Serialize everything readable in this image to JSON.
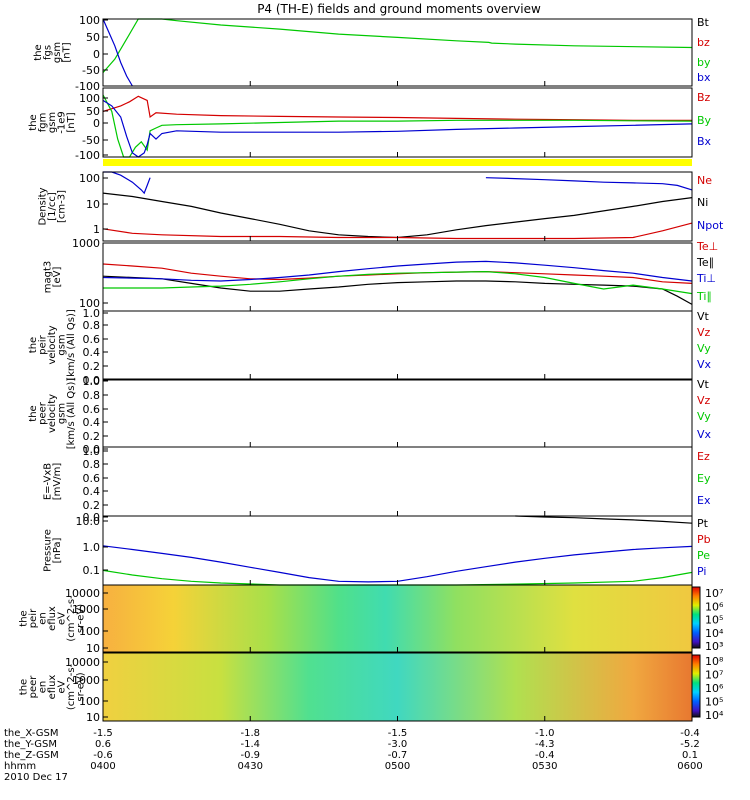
{
  "title": "P4 (TH-E) fields and ground moments overview",
  "colors": {
    "black": "#000000",
    "red": "#d40000",
    "green": "#00c800",
    "blue": "#0000d0",
    "yellow": "#ffff00"
  },
  "chart_data": [
    {
      "type": "line",
      "panel": "fgs",
      "ylabel": [
        "the",
        "fgs",
        "gsm",
        "[nT]"
      ],
      "yticks": [
        "100",
        "50",
        "0",
        "-50",
        "-100"
      ],
      "ylim": [
        -100,
        100
      ],
      "legend": [
        {
          "label": "Bt",
          "color": "black"
        },
        {
          "label": "bz",
          "color": "red"
        },
        {
          "label": "by",
          "color": "green"
        },
        {
          "label": "bx",
          "color": "blue"
        }
      ],
      "series": [
        {
          "color": "green",
          "x": [
            400,
            404,
            408,
            412,
            415,
            416,
            418,
            420,
            425,
            440,
            460,
            480,
            500,
            520,
            531,
            532,
            540,
            560,
            600
          ],
          "y": [
            -60,
            -20,
            40,
            100,
            120,
            120,
            110,
            100,
            95,
            82,
            70,
            55,
            45,
            35,
            30,
            28,
            25,
            20,
            15
          ]
        },
        {
          "color": "blue",
          "x": [
            400,
            402,
            404,
            406,
            408,
            410
          ],
          "y": [
            100,
            60,
            20,
            -30,
            -70,
            -100
          ]
        }
      ]
    },
    {
      "type": "line",
      "panel": "fgm",
      "ylabel": [
        "the",
        "fgm",
        "gsm",
        "-1e9",
        "[nT]"
      ],
      "yticks": [
        "100",
        "50",
        "0",
        "-50",
        "-100"
      ],
      "ylim": [
        -125,
        125
      ],
      "legend": [
        {
          "label": "Bz",
          "color": "red"
        },
        {
          "label": "By",
          "color": "green"
        },
        {
          "label": "Bx",
          "color": "blue"
        }
      ],
      "series": [
        {
          "color": "red",
          "x": [
            400,
            403,
            406,
            409,
            412,
            415,
            416,
            418,
            425,
            440,
            460,
            480,
            500,
            520,
            540,
            560,
            580,
            600
          ],
          "y": [
            40,
            50,
            60,
            75,
            95,
            80,
            20,
            35,
            30,
            25,
            22,
            20,
            18,
            15,
            12,
            10,
            8,
            8
          ]
        },
        {
          "color": "green",
          "x": [
            400,
            403,
            405,
            407,
            409,
            411,
            413,
            415,
            416,
            418,
            420,
            425,
            440,
            460,
            480,
            500,
            520,
            540,
            560,
            580,
            600
          ],
          "y": [
            100,
            40,
            -60,
            -130,
            -125,
            -90,
            -70,
            -100,
            -30,
            -20,
            -10,
            -8,
            -5,
            0,
            5,
            5,
            8,
            8,
            8,
            6,
            5
          ]
        },
        {
          "color": "blue",
          "x": [
            400,
            403,
            406,
            408,
            410,
            412,
            414,
            415,
            416,
            418,
            420,
            425,
            440,
            460,
            480,
            500,
            520,
            540,
            560,
            580,
            600
          ],
          "y": [
            80,
            60,
            20,
            -50,
            -110,
            -130,
            -110,
            -80,
            -40,
            -60,
            -40,
            -30,
            -35,
            -35,
            -35,
            -32,
            -25,
            -20,
            -15,
            -10,
            -5
          ]
        }
      ]
    },
    {
      "type": "line",
      "panel": "density",
      "ylabel": [
        "Density",
        "[1/cc]",
        "[cm-3]"
      ],
      "yticks": [
        "100",
        "10",
        "1"
      ],
      "scale": "log",
      "ylim": [
        0.4,
        200
      ],
      "legend": [
        {
          "label": "Ne",
          "color": "red"
        },
        {
          "label": "Ni",
          "color": "black"
        },
        {
          "label": "Npot",
          "color": "blue"
        }
      ],
      "series": [
        {
          "color": "black",
          "x": [
            400,
            410,
            420,
            430,
            440,
            450,
            460,
            470,
            480,
            490,
            500,
            510,
            520,
            530,
            540,
            550,
            560,
            570,
            580,
            590,
            600
          ],
          "y": [
            30,
            22,
            14,
            9,
            5,
            3,
            1.8,
            1,
            0.7,
            0.6,
            0.55,
            0.7,
            1.1,
            1.6,
            2.2,
            3,
            4,
            6,
            9,
            14,
            20
          ]
        },
        {
          "color": "red",
          "x": [
            400,
            410,
            420,
            440,
            460,
            480,
            500,
            520,
            540,
            560,
            580,
            590,
            600
          ],
          "y": [
            1.2,
            0.8,
            0.7,
            0.6,
            0.6,
            0.55,
            0.55,
            0.5,
            0.5,
            0.5,
            0.55,
            1,
            2
          ]
        },
        {
          "color": "blue",
          "x": [
            400,
            403,
            406,
            410,
            413,
            414,
            415,
            416
          ],
          "y": [
            200,
            200,
            150,
            80,
            40,
            30,
            60,
            120
          ]
        },
        {
          "color": "blue",
          "x": [
            530,
            540,
            550,
            560,
            570,
            580,
            590,
            595,
            600
          ],
          "y": [
            120,
            110,
            100,
            90,
            80,
            75,
            70,
            60,
            40
          ]
        }
      ]
    },
    {
      "type": "line",
      "panel": "magt3",
      "ylabel": [
        "magt3",
        "[eV]"
      ],
      "yticks": [
        "1000",
        "100"
      ],
      "scale": "log",
      "ylim": [
        100,
        1500
      ],
      "legend": [
        {
          "label": "Te⊥",
          "color": "red"
        },
        {
          "label": "Te∥",
          "color": "black"
        },
        {
          "label": "Ti⊥",
          "color": "blue"
        },
        {
          "label": "Ti∥",
          "color": "green"
        }
      ],
      "series": [
        {
          "color": "red",
          "x": [
            400,
            410,
            420,
            430,
            440,
            450,
            460,
            470,
            480,
            490,
            500,
            510,
            520,
            530,
            540,
            550,
            560,
            570,
            580,
            590,
            600
          ],
          "y": [
            650,
            600,
            550,
            450,
            400,
            360,
            350,
            370,
            400,
            420,
            440,
            460,
            470,
            480,
            460,
            440,
            420,
            400,
            380,
            320,
            300
          ]
        },
        {
          "color": "black",
          "x": [
            400,
            410,
            420,
            430,
            440,
            450,
            460,
            470,
            480,
            490,
            500,
            510,
            520,
            530,
            540,
            550,
            560,
            570,
            580,
            590,
            595,
            600
          ],
          "y": [
            400,
            380,
            360,
            300,
            250,
            220,
            220,
            240,
            260,
            290,
            310,
            320,
            330,
            330,
            320,
            300,
            290,
            280,
            270,
            240,
            180,
            130
          ]
        },
        {
          "color": "blue",
          "x": [
            400,
            410,
            420,
            430,
            440,
            450,
            460,
            470,
            480,
            490,
            500,
            510,
            520,
            530,
            540,
            550,
            560,
            570,
            580,
            590,
            600
          ],
          "y": [
            380,
            370,
            360,
            340,
            330,
            350,
            380,
            420,
            480,
            540,
            600,
            650,
            700,
            720,
            680,
            620,
            560,
            500,
            450,
            380,
            330
          ]
        },
        {
          "color": "green",
          "x": [
            400,
            410,
            420,
            430,
            440,
            450,
            460,
            470,
            480,
            490,
            500,
            510,
            520,
            530,
            540,
            550,
            560,
            570,
            580,
            590,
            600
          ],
          "y": [
            250,
            250,
            250,
            260,
            270,
            290,
            320,
            360,
            400,
            430,
            450,
            460,
            470,
            480,
            440,
            380,
            300,
            240,
            280,
            240,
            200
          ]
        }
      ]
    },
    {
      "type": "line",
      "panel": "peir_velocity",
      "ylabel": [
        "the",
        "peir",
        "velocity",
        "gsm",
        "[km/s (All Qs)]"
      ],
      "yticks": [
        "1.0",
        "0.8",
        "0.6",
        "0.4",
        "0.2",
        "0.0"
      ],
      "ylim": [
        0,
        1
      ],
      "legend": [
        {
          "label": "Vt",
          "color": "black"
        },
        {
          "label": "Vz",
          "color": "red"
        },
        {
          "label": "Vy",
          "color": "green"
        },
        {
          "label": "Vx",
          "color": "blue"
        }
      ],
      "series": []
    },
    {
      "type": "line",
      "panel": "peer_velocity",
      "ylabel": [
        "the",
        "peer",
        "velocity",
        "gsm",
        "[km/s (All Qs)]"
      ],
      "yticks": [
        "1.0",
        "0.8",
        "0.6",
        "0.4",
        "0.2",
        "0.0"
      ],
      "ylim": [
        0,
        1
      ],
      "legend": [
        {
          "label": "Vt",
          "color": "black"
        },
        {
          "label": "Vz",
          "color": "red"
        },
        {
          "label": "Vy",
          "color": "green"
        },
        {
          "label": "Vx",
          "color": "blue"
        }
      ],
      "series": []
    },
    {
      "type": "line",
      "panel": "e_vxb",
      "ylabel": [
        "E=-VxB",
        "[mV/m]"
      ],
      "yticks": [
        "1.0",
        "0.8",
        "0.6",
        "0.4",
        "0.2",
        "0.0"
      ],
      "ylim": [
        0,
        1
      ],
      "legend": [
        {
          "label": "Ez",
          "color": "red"
        },
        {
          "label": "Ey",
          "color": "green"
        },
        {
          "label": "Ex",
          "color": "blue"
        }
      ],
      "series": []
    },
    {
      "type": "line",
      "panel": "pressure",
      "ylabel": [
        "Pressure",
        "[nPa]"
      ],
      "yticks": [
        "10.0",
        "1.0",
        "0.1"
      ],
      "scale": "log",
      "ylim": [
        0.02,
        40
      ],
      "legend": [
        {
          "label": "Pt",
          "color": "black"
        },
        {
          "label": "Pb",
          "color": "red"
        },
        {
          "label": "Pe",
          "color": "green"
        },
        {
          "label": "Pi",
          "color": "blue"
        }
      ],
      "series": [
        {
          "color": "blue",
          "x": [
            400,
            410,
            420,
            430,
            440,
            450,
            460,
            470,
            480,
            490,
            500,
            510,
            520,
            530,
            540,
            550,
            560,
            570,
            580,
            590,
            600
          ],
          "y": [
            1.5,
            1,
            0.65,
            0.42,
            0.25,
            0.14,
            0.08,
            0.045,
            0.03,
            0.028,
            0.03,
            0.05,
            0.09,
            0.15,
            0.25,
            0.38,
            0.55,
            0.75,
            1,
            1.2,
            1.4
          ]
        },
        {
          "color": "green",
          "x": [
            400,
            410,
            420,
            430,
            440,
            460,
            480,
            500,
            520,
            540,
            560,
            580,
            590,
            600
          ],
          "y": [
            0.1,
            0.06,
            0.04,
            0.03,
            0.025,
            0.02,
            0.02,
            0.02,
            0.02,
            0.022,
            0.025,
            0.03,
            0.045,
            0.08
          ]
        },
        {
          "color": "black",
          "x": [
            540,
            550,
            560,
            570,
            580,
            590,
            600
          ],
          "y": [
            40,
            36,
            33,
            29,
            26,
            22,
            18
          ]
        }
      ]
    },
    {
      "type": "heatmap",
      "panel": "peir_en_eflux",
      "ylabel": [
        "the",
        "peir",
        "en",
        "eflux",
        "eV",
        "(cm^2-s-",
        "sr-eV)"
      ],
      "yticks": [
        "10000",
        "1000",
        "100",
        "10"
      ],
      "colorbar_ticks": [
        "10⁷",
        "10⁶",
        "10⁵",
        "10⁴",
        "10³"
      ]
    },
    {
      "type": "heatmap",
      "panel": "peer_en_eflux",
      "ylabel": [
        "the",
        "peer",
        "en",
        "eflux",
        "eV",
        "(cm^2-s-",
        "sr-eV)"
      ],
      "yticks": [
        "10000",
        "1000",
        "100",
        "10"
      ],
      "colorbar_ticks": [
        "10⁸",
        "10⁷",
        "10⁶",
        "10⁵",
        "10⁴"
      ]
    }
  ],
  "x_axis": {
    "row_labels": [
      "the_X-GSM",
      "the_Y-GSM",
      "the_Z-GSM",
      "hhmm",
      "2010 Dec 17"
    ],
    "columns": [
      [
        "-1.5",
        "0.6",
        "-0.6",
        "0400"
      ],
      [
        "-1.8",
        "-1.4",
        "-0.9",
        "0430"
      ],
      [
        "-1.5",
        "-3.0",
        "-0.7",
        "0500"
      ],
      [
        "-1.0",
        "-4.3",
        "-0.4",
        "0530"
      ],
      [
        "-0.4",
        "-5.2",
        "0.1",
        "0600"
      ]
    ]
  }
}
